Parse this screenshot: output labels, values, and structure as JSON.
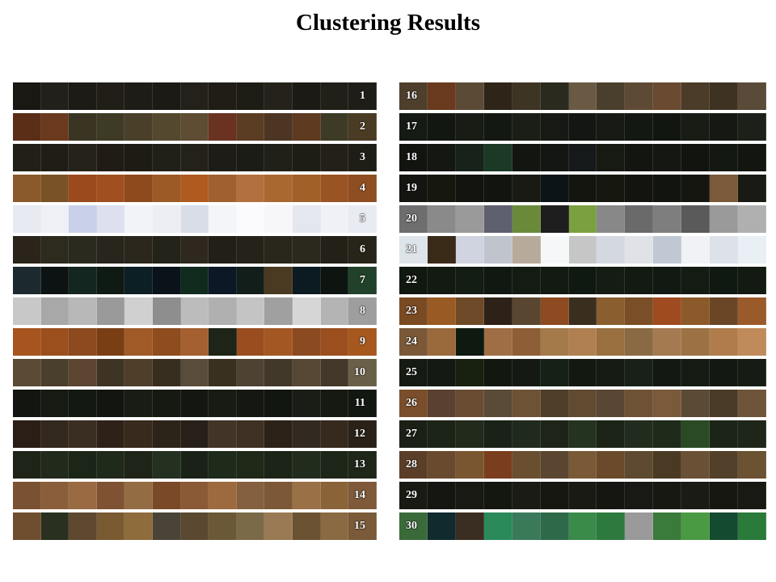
{
  "title": "Clustering Results",
  "tiles_per_row": 13,
  "left_rows": [
    {
      "label": "1",
      "colors": [
        "#1a1813",
        "#22201a",
        "#1c1b15",
        "#201e17",
        "#1e1c16",
        "#1b1a14",
        "#23211a",
        "#1f1d16",
        "#1d1c15",
        "#24221a",
        "#1c1a14",
        "#201f18",
        "#1e1d17"
      ]
    },
    {
      "label": "2",
      "colors": [
        "#5a2e17",
        "#6b3a1e",
        "#3a3522",
        "#3f3a25",
        "#4a402a",
        "#54482f",
        "#5e4c33",
        "#6a3220",
        "#5b3d23",
        "#4c3522",
        "#5e3a20",
        "#3d3a26",
        "#4a3b24"
      ]
    },
    {
      "label": "3",
      "colors": [
        "#221f16",
        "#1f1d15",
        "#25221a",
        "#201c15",
        "#1d1b14",
        "#201f18",
        "#242119",
        "#1e1c16",
        "#1b1c15",
        "#202018",
        "#1e1d15",
        "#232019",
        "#1f1e16"
      ]
    },
    {
      "label": "4",
      "colors": [
        "#8a5a2b",
        "#7a5228",
        "#9a4a1c",
        "#a05020",
        "#8e4a1d",
        "#9c5a26",
        "#b05a20",
        "#a06030",
        "#b27040",
        "#a86830",
        "#a06028",
        "#9a5424",
        "#8e4e22"
      ]
    },
    {
      "label": "5",
      "colors": [
        "#e8eaf2",
        "#eef0f6",
        "#c9d0ea",
        "#dde1ef",
        "#f2f3f8",
        "#eceef4",
        "#d8dde8",
        "#f4f5f8",
        "#fbfbfd",
        "#f7f7fa",
        "#e4e7ef",
        "#f0f1f6",
        "#e9ebf2"
      ]
    },
    {
      "label": "6",
      "colors": [
        "#2a241a",
        "#2d2a1e",
        "#2a2a1f",
        "#27251c",
        "#2c271d",
        "#24231a",
        "#2e281e",
        "#221f17",
        "#252219",
        "#29261c",
        "#2b281e",
        "#232018",
        "#272419"
      ]
    },
    {
      "label": "7",
      "colors": [
        "#1c2a30",
        "#0d1212",
        "#13261f",
        "#0f1a14",
        "#0c1f24",
        "#0a1319",
        "#102a1e",
        "#0c1826",
        "#121e1a",
        "#4a3a22",
        "#0c1a22",
        "#0e1511",
        "#22412a"
      ]
    },
    {
      "label": "8",
      "colors": [
        "#c8c8c8",
        "#a8a8a8",
        "#b8b8b8",
        "#9a9a9a",
        "#d0d0d0",
        "#8e8e8e",
        "#bcbcbc",
        "#b0b0b0",
        "#c4c4c4",
        "#a0a0a0",
        "#d6d6d6",
        "#b4b4b4",
        "#9e9e9e"
      ]
    },
    {
      "label": "9",
      "colors": [
        "#a8541e",
        "#9a4f1c",
        "#8c4a1e",
        "#7a3e14",
        "#a05a28",
        "#8e4c1f",
        "#a46030",
        "#1e2417",
        "#9a4e20",
        "#a35824",
        "#8c4a20",
        "#9c4f1e",
        "#a6581f"
      ]
    },
    {
      "label": "10",
      "colors": [
        "#5a4a36",
        "#4a3e2c",
        "#5c4632",
        "#3e3424",
        "#4e3e2a",
        "#382e20",
        "#5a4c3a",
        "#3a3020",
        "#4e4232",
        "#42382a",
        "#564834",
        "#44382a",
        "#6a6048"
      ]
    },
    {
      "label": "11",
      "colors": [
        "#121510",
        "#161a12",
        "#141812",
        "#121510",
        "#181c14",
        "#151912",
        "#131611",
        "#171b13",
        "#141712",
        "#121611",
        "#191d15",
        "#161911",
        "#131711"
      ]
    },
    {
      "label": "12",
      "colors": [
        "#2a1e16",
        "#32281e",
        "#3a2e22",
        "#2e2218",
        "#382a1c",
        "#2c2418",
        "#262018",
        "#433428",
        "#3e3022",
        "#2c2218",
        "#322a20",
        "#362a1e",
        "#2a2219"
      ]
    },
    {
      "label": "13",
      "colors": [
        "#1e2418",
        "#222a1c",
        "#1c2618",
        "#202a1a",
        "#1e2418",
        "#243020",
        "#1a2218",
        "#1e2a1a",
        "#202818",
        "#1c2418",
        "#222c1c",
        "#1e2619",
        "#1f2718"
      ]
    },
    {
      "label": "14",
      "colors": [
        "#7a5232",
        "#8a5e3a",
        "#9a6a42",
        "#7e5232",
        "#946c44",
        "#7a4a28",
        "#8a5a36",
        "#9c6a3e",
        "#846040",
        "#7c5836",
        "#9a7046",
        "#8a6438",
        "#7e5a3a"
      ]
    },
    {
      "label": "15",
      "colors": [
        "#6e4e2e",
        "#2a3020",
        "#5e4830",
        "#7a5a30",
        "#8e6c3c",
        "#4a4438",
        "#5a4830",
        "#6a5836",
        "#7a6a48",
        "#9a7a54",
        "#6a5232",
        "#8a6a42",
        "#7a5a38"
      ]
    }
  ],
  "right_rows": [
    {
      "label": "16",
      "colors": [
        "#4e3e2c",
        "#6a3a1e",
        "#5a4a36",
        "#2e2418",
        "#3e3424",
        "#2a2a1e",
        "#6a5a44",
        "#4a3e2c",
        "#5e4a34",
        "#6a4a30",
        "#4a3c28",
        "#3e3222",
        "#5a4a38"
      ]
    },
    {
      "label": "17",
      "colors": [
        "#161a14",
        "#131712",
        "#181c15",
        "#141813",
        "#1a1e16",
        "#161914",
        "#131612",
        "#171a14",
        "#141813",
        "#121611",
        "#181c15",
        "#161913",
        "#1c2018"
      ]
    },
    {
      "label": "18",
      "colors": [
        "#121410",
        "#141712",
        "#16221a",
        "#1a3a26",
        "#121510",
        "#131612",
        "#15191a",
        "#161a12",
        "#131511",
        "#151812",
        "#121410",
        "#141812",
        "#131610"
      ]
    },
    {
      "label": "19",
      "colors": [
        "#141410",
        "#16170f",
        "#131410",
        "#12140f",
        "#1a1a14",
        "#0c1418",
        "#14150f",
        "#16180f",
        "#131410",
        "#12140f",
        "#15160f",
        "#7a5a3a",
        "#1a1a14"
      ]
    },
    {
      "label": "20",
      "colors": [
        "#6e6e6e",
        "#8a8a8a",
        "#9a9a9a",
        "#5e6070",
        "#6a8a3a",
        "#1e1e1e",
        "#7aa040",
        "#888888",
        "#6a6a6a",
        "#7e7e7e",
        "#5a5a5a",
        "#9a9a9a",
        "#b0b0b0"
      ]
    },
    {
      "label": "21",
      "colors": [
        "#dde4ea",
        "#3a2a18",
        "#d0d4e0",
        "#c0c4cc",
        "#b8aa9a",
        "#f6f7f9",
        "#c6c6c6",
        "#d4d8e0",
        "#e0e2e8",
        "#c0c8d4",
        "#f0f2f6",
        "#dde2ea",
        "#e8f0f6"
      ]
    },
    {
      "label": "22",
      "colors": [
        "#101810",
        "#121a12",
        "#141d14",
        "#111812",
        "#131b13",
        "#121a12",
        "#101812",
        "#141c14",
        "#121a12",
        "#111912",
        "#131b13",
        "#101812",
        "#121a12"
      ]
    },
    {
      "label": "23",
      "colors": [
        "#7a4a22",
        "#9a5a24",
        "#6e4a28",
        "#2e2218",
        "#5a4630",
        "#8e4a20",
        "#3a2e1e",
        "#8a5e2e",
        "#7a4e26",
        "#a04a20",
        "#8c5a2a",
        "#6a4626",
        "#9a5a2a"
      ]
    },
    {
      "label": "24",
      "colors": [
        "#7a5838",
        "#9a6a3c",
        "#0e1a10",
        "#a06e44",
        "#8e5e36",
        "#a47a4a",
        "#b08050",
        "#9a7040",
        "#8a6a44",
        "#a47a50",
        "#9c7244",
        "#b07c4c",
        "#c08a5a"
      ]
    },
    {
      "label": "25",
      "colors": [
        "#151a12",
        "#141914",
        "#18200f",
        "#121810",
        "#141a13",
        "#162016",
        "#131811",
        "#151a12",
        "#182018",
        "#131812",
        "#151b13",
        "#131912",
        "#161c14"
      ]
    },
    {
      "label": "26",
      "colors": [
        "#7a4e2a",
        "#5a4030",
        "#6a4c32",
        "#5a4a38",
        "#6e5236",
        "#4e3e2a",
        "#624a30",
        "#5a4634",
        "#6e5236",
        "#7a5a3a",
        "#5a4a36",
        "#4a3a28",
        "#6e5438"
      ]
    },
    {
      "label": "27",
      "colors": [
        "#1a2016",
        "#1c2418",
        "#222a1c",
        "#1a2218",
        "#202a1c",
        "#1e2418",
        "#243220",
        "#1c2418",
        "#222c1e",
        "#1e2a1a",
        "#2a4a24",
        "#1c2418",
        "#1e2619"
      ]
    },
    {
      "label": "28",
      "colors": [
        "#5a3e28",
        "#6a4a2e",
        "#7a5630",
        "#7a3e1e",
        "#6a4e30",
        "#5a4630",
        "#7a5a36",
        "#6a4a2a",
        "#5e4a30",
        "#4a3a24",
        "#6a5034",
        "#52402a",
        "#6a5232"
      ]
    },
    {
      "label": "29",
      "colors": [
        "#1a1a14",
        "#151611",
        "#181913",
        "#141610",
        "#1a1b14",
        "#161711",
        "#191a13",
        "#151611",
        "#181914",
        "#171811",
        "#1a1b14",
        "#161711",
        "#181913"
      ]
    },
    {
      "label": "30",
      "colors": [
        "#3a6a3a",
        "#102a2e",
        "#3a2e22",
        "#2a8a5a",
        "#3a7a5a",
        "#2e6a4a",
        "#3a8a4a",
        "#2e7a3e",
        "#9a9a9a",
        "#3a7a3a",
        "#4a9a44",
        "#144a30",
        "#2a7a3a"
      ]
    }
  ]
}
